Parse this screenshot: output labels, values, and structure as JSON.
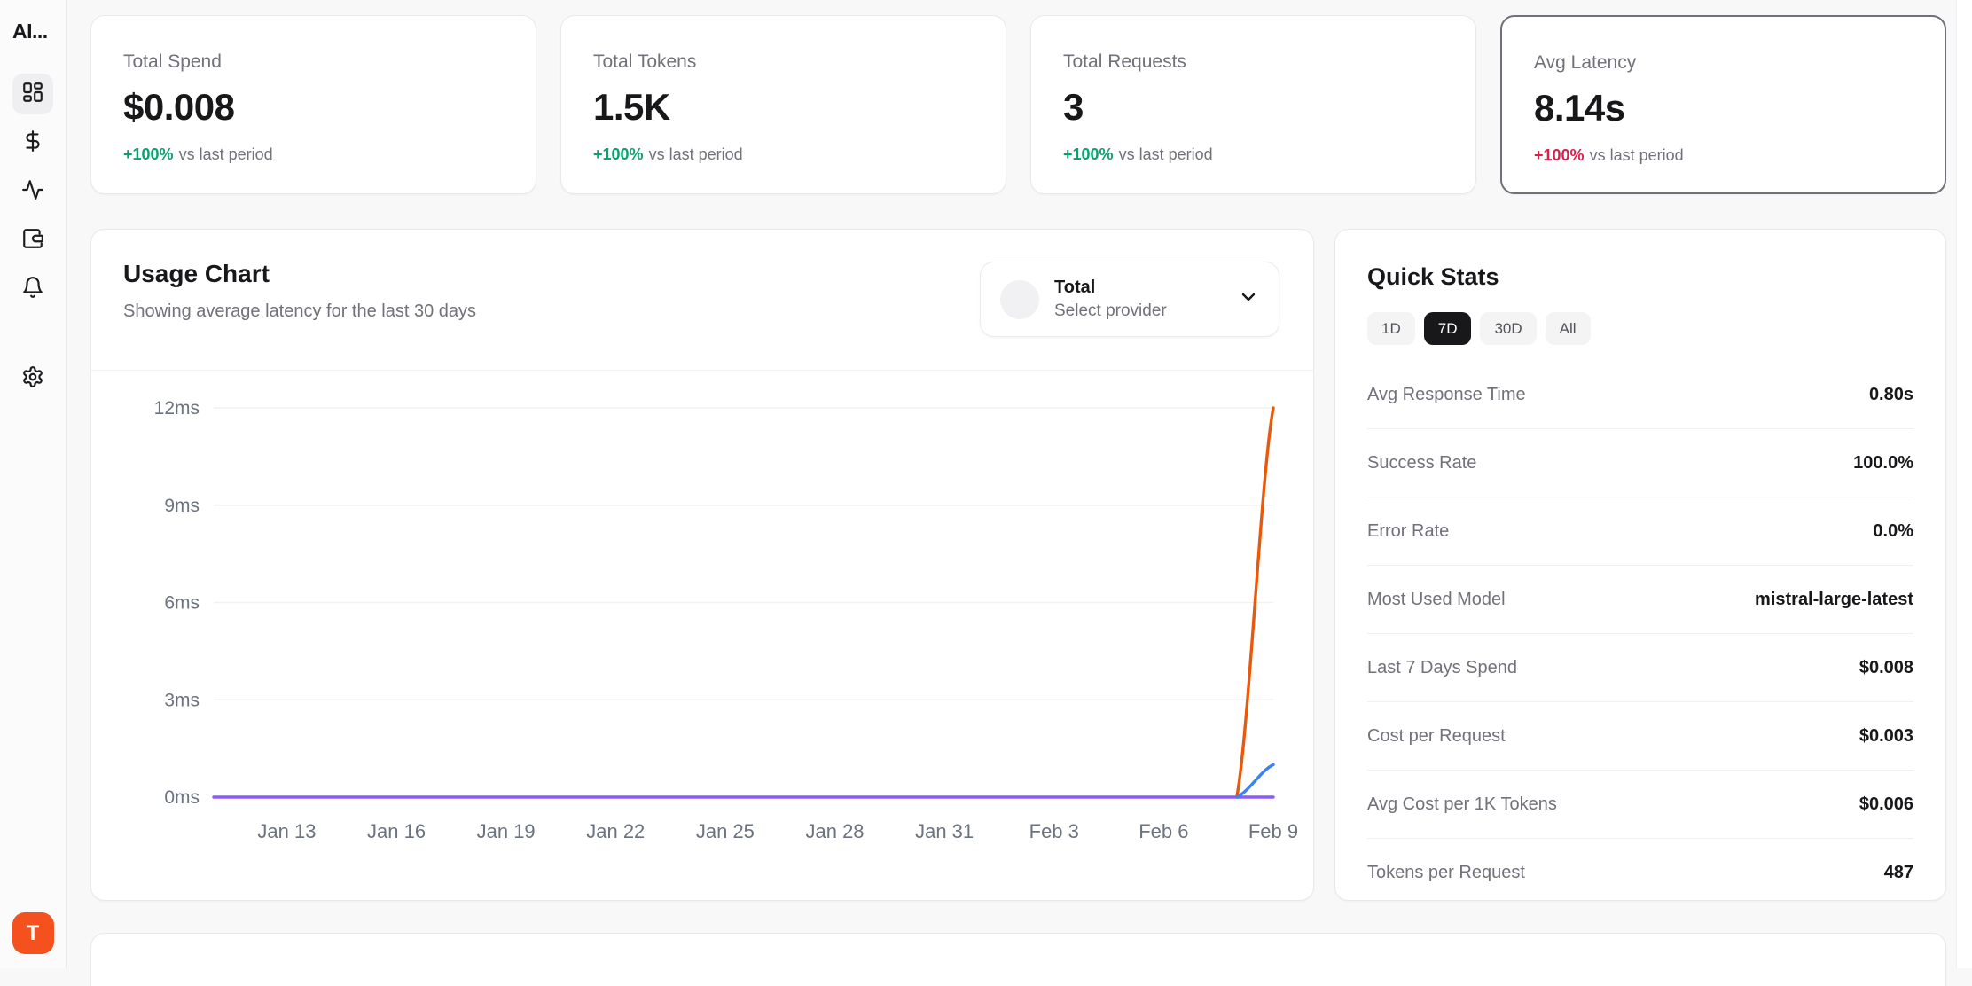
{
  "colors": {
    "green": "#0e9f6e",
    "red": "#e11d48",
    "avatar_orange": "#f4511e",
    "active_pill": "#18181b",
    "line_purple": "#8b5cf6",
    "line_orange": "#ea580c",
    "line_blue": "#3b82f6"
  },
  "sidebar": {
    "logo": "AI...",
    "avatar_initial": "T",
    "nav": [
      {
        "icon": "dashboard-icon",
        "active": true
      },
      {
        "icon": "dollar-icon",
        "active": false
      },
      {
        "icon": "activity-icon",
        "active": false
      },
      {
        "icon": "wallet-icon",
        "active": false
      },
      {
        "icon": "bell-icon",
        "active": false
      },
      {
        "icon": "gear-icon",
        "active": false
      }
    ]
  },
  "stat_cards": [
    {
      "label": "Total Spend",
      "value": "$0.008",
      "delta": "+100%",
      "delta_color": "#0e9f6e",
      "delta_caption": "vs last period",
      "highlighted": false
    },
    {
      "label": "Total Tokens",
      "value": "1.5K",
      "delta": "+100%",
      "delta_color": "#0e9f6e",
      "delta_caption": "vs last period",
      "highlighted": false
    },
    {
      "label": "Total Requests",
      "value": "3",
      "delta": "+100%",
      "delta_color": "#0e9f6e",
      "delta_caption": "vs last period",
      "highlighted": false
    },
    {
      "label": "Avg Latency",
      "value": "8.14s",
      "delta": "+100%",
      "delta_color": "#e11d48",
      "delta_caption": "vs last period",
      "highlighted": true
    }
  ],
  "usage_chart": {
    "title": "Usage Chart",
    "subtitle": "Showing average latency for the last 30 days",
    "provider_selector": {
      "selected": "Total",
      "placeholder": "Select provider"
    }
  },
  "chart_data": {
    "type": "line",
    "title": "Usage Chart",
    "x": [
      "Jan 11",
      "Jan 12",
      "Jan 13",
      "Jan 14",
      "Jan 15",
      "Jan 16",
      "Jan 17",
      "Jan 18",
      "Jan 19",
      "Jan 20",
      "Jan 21",
      "Jan 22",
      "Jan 23",
      "Jan 24",
      "Jan 25",
      "Jan 26",
      "Jan 27",
      "Jan 28",
      "Jan 29",
      "Jan 30",
      "Jan 31",
      "Feb 1",
      "Feb 2",
      "Feb 3",
      "Feb 4",
      "Feb 5",
      "Feb 6",
      "Feb 7",
      "Feb 8",
      "Feb 9"
    ],
    "series": [
      {
        "name": "Total",
        "color": "#8b5cf6",
        "values": [
          0,
          0,
          0,
          0,
          0,
          0,
          0,
          0,
          0,
          0,
          0,
          0,
          0,
          0,
          0,
          0,
          0,
          0,
          0,
          0,
          0,
          0,
          0,
          0,
          0,
          0,
          0,
          0,
          0,
          0
        ]
      },
      {
        "name": "series_orange",
        "color": "#ea580c",
        "values": [
          null,
          null,
          null,
          null,
          null,
          null,
          null,
          null,
          null,
          null,
          null,
          null,
          null,
          null,
          null,
          null,
          null,
          null,
          null,
          null,
          null,
          null,
          null,
          null,
          null,
          null,
          null,
          null,
          0,
          12
        ]
      },
      {
        "name": "series_blue",
        "color": "#3b82f6",
        "values": [
          null,
          null,
          null,
          null,
          null,
          null,
          null,
          null,
          null,
          null,
          null,
          null,
          null,
          null,
          null,
          null,
          null,
          null,
          null,
          null,
          null,
          null,
          null,
          null,
          null,
          null,
          null,
          null,
          0,
          1
        ]
      }
    ],
    "ylim": [
      0,
      12
    ],
    "yticks": [
      0,
      3,
      6,
      9,
      12
    ],
    "y_unit": "ms",
    "xticks": [
      {
        "i": 2,
        "label": "Jan 13"
      },
      {
        "i": 5,
        "label": "Jan 16"
      },
      {
        "i": 8,
        "label": "Jan 19"
      },
      {
        "i": 11,
        "label": "Jan 22"
      },
      {
        "i": 14,
        "label": "Jan 25"
      },
      {
        "i": 17,
        "label": "Jan 28"
      },
      {
        "i": 20,
        "label": "Jan 31"
      },
      {
        "i": 23,
        "label": "Feb 3"
      },
      {
        "i": 26,
        "label": "Feb 6"
      },
      {
        "i": 29,
        "label": "Feb 9"
      }
    ],
    "grid": true,
    "grid_color": "#f2f2f3",
    "axis_color": "#6b7280",
    "legend_position": "none"
  },
  "quick_stats": {
    "title": "Quick Stats",
    "ranges": [
      {
        "label": "1D",
        "active": false
      },
      {
        "label": "7D",
        "active": true
      },
      {
        "label": "30D",
        "active": false
      },
      {
        "label": "All",
        "active": false
      }
    ],
    "rows": [
      {
        "label": "Avg Response Time",
        "value": "0.80s"
      },
      {
        "label": "Success Rate",
        "value": "100.0%"
      },
      {
        "label": "Error Rate",
        "value": "0.0%"
      },
      {
        "label": "Most Used Model",
        "value": "mistral-large-latest"
      },
      {
        "label": "Last 7 Days Spend",
        "value": "$0.008"
      },
      {
        "label": "Cost per Request",
        "value": "$0.003"
      },
      {
        "label": "Avg Cost per 1K Tokens",
        "value": "$0.006"
      },
      {
        "label": "Tokens per Request",
        "value": "487"
      }
    ]
  }
}
